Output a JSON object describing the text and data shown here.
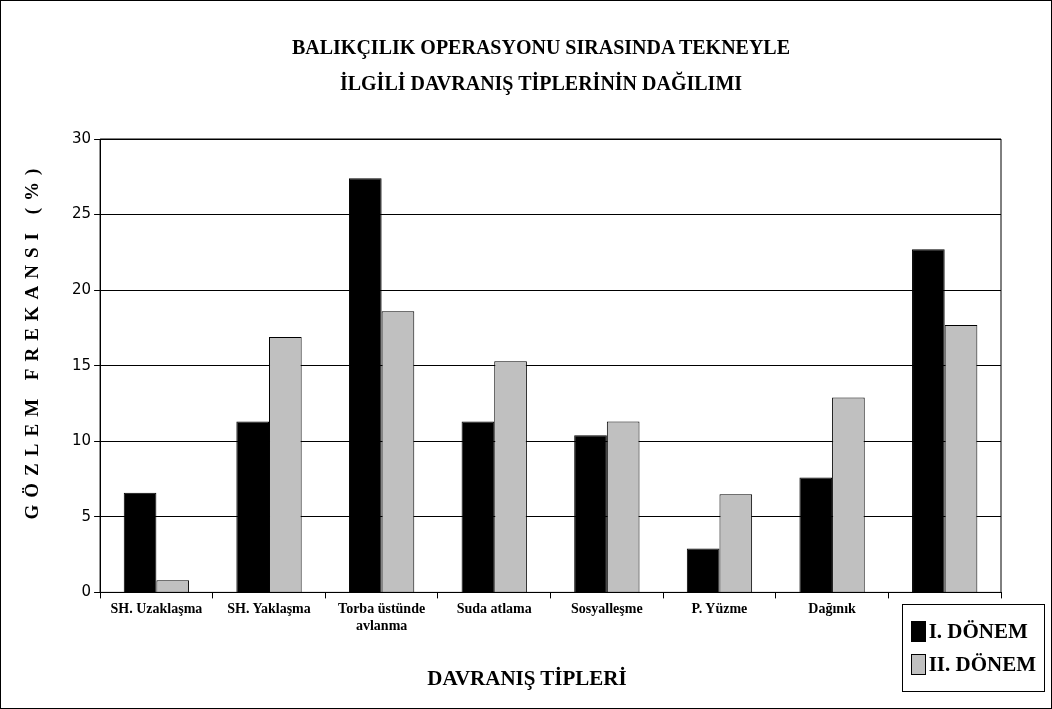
{
  "chart_data": {
    "type": "bar",
    "title": "BALIKÇILIK OPERASYONU SIRASINDA TEKNEYLE İLGİLİ DAVRANIŞ TİPLERİNİN DAĞILIMI",
    "xlabel": "DAVRANIŞ TİPLERİ",
    "ylabel": "GÖZLEM FREKANSI (%)",
    "categories": [
      "SH. Uzaklaşma",
      "SH. Yaklaşma",
      "Torba üstünde avlanma",
      "Suda atlama",
      "Sosyalleşme",
      "P. Yüzme",
      "Dağınık",
      null
    ],
    "series": [
      {
        "name": "I. DÖNEM",
        "color": "#000000",
        "values": [
          6.6,
          11.3,
          27.4,
          11.3,
          10.4,
          2.9,
          7.6,
          22.7
        ]
      },
      {
        "name": "II. DÖNEM",
        "color": "#c0c0c0",
        "values": [
          0.8,
          16.9,
          18.6,
          15.3,
          11.3,
          6.5,
          12.9,
          17.7
        ]
      }
    ],
    "ylim": [
      0,
      30
    ],
    "yticks": [
      0,
      5,
      10,
      15,
      20,
      25,
      30
    ],
    "grid": "y",
    "legend": "bottom right"
  }
}
